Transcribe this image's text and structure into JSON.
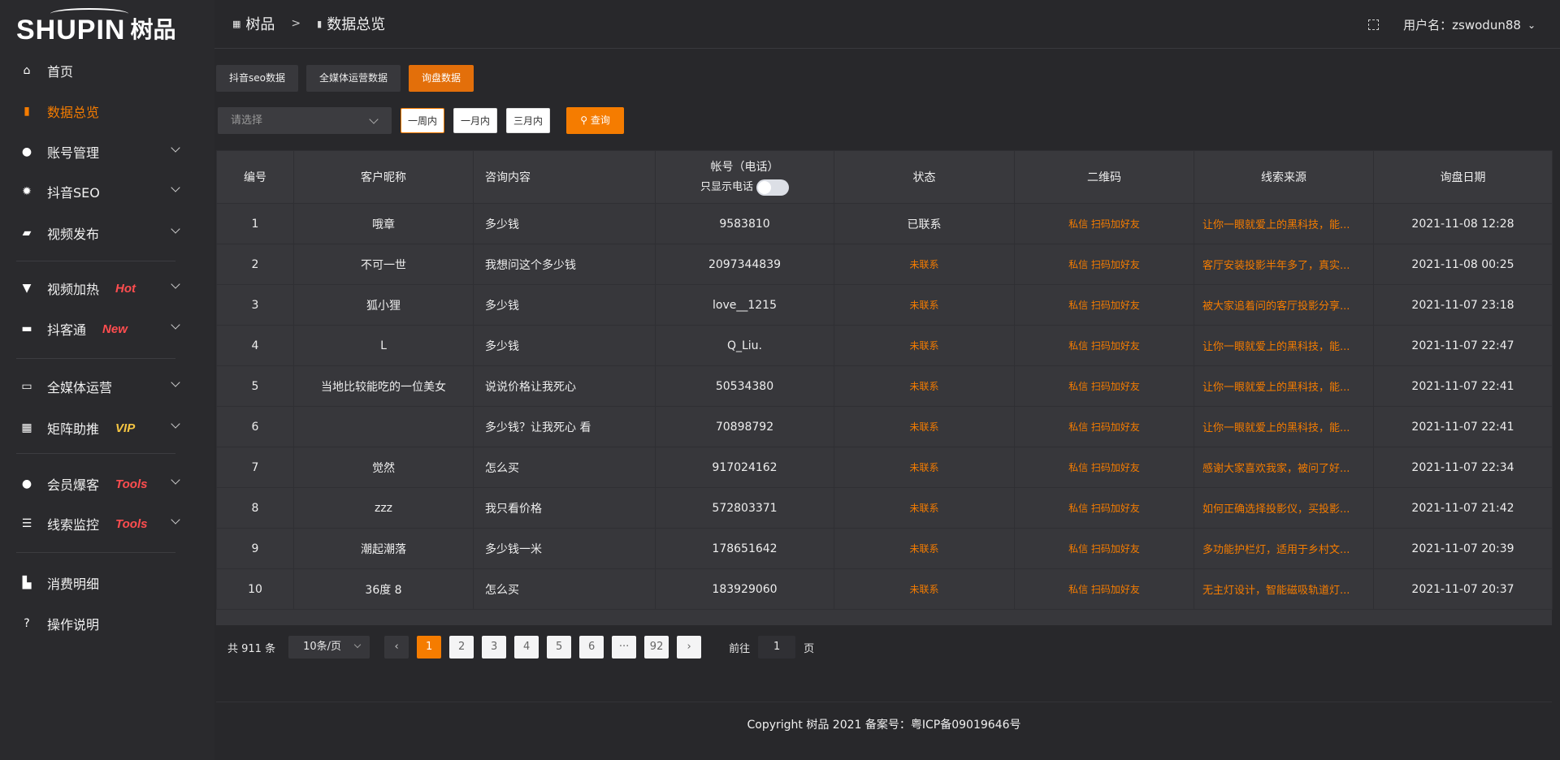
{
  "brand": {
    "logo_en": "SHUPIN",
    "logo_cn": "树品"
  },
  "sidebar": {
    "items": [
      {
        "label": "首页",
        "icon": "home-icon"
      },
      {
        "label": "数据总览",
        "icon": "bar-chart-icon",
        "active": true
      },
      {
        "label": "账号管理",
        "icon": "user-icon",
        "expandable": true
      },
      {
        "label": "抖音SEO",
        "icon": "gear-icon",
        "expandable": true
      },
      {
        "label": "视频发布",
        "icon": "video-icon",
        "expandable": true
      },
      {
        "label": "视频加热",
        "icon": "brush-icon",
        "badge": "Hot",
        "expandable": true
      },
      {
        "label": "抖客通",
        "icon": "chat-icon",
        "badge": "New",
        "expandable": true
      },
      {
        "label": "全媒体运营",
        "icon": "monitor-icon",
        "expandable": true
      },
      {
        "label": "矩阵助推",
        "icon": "grid-icon",
        "badge": "VIP",
        "expandable": true
      },
      {
        "label": "会员爆客",
        "icon": "member-icon",
        "badge": "Tools",
        "expandable": true
      },
      {
        "label": "线索监控",
        "icon": "sliders-icon",
        "badge": "Tools",
        "expandable": true
      },
      {
        "label": "消费明细",
        "icon": "wallet-icon"
      },
      {
        "label": "操作说明",
        "icon": "help-icon"
      }
    ]
  },
  "colors": {
    "accent": "#f57c00",
    "badge_red": "#ff4d4f",
    "badge_vip": "#f5c542"
  },
  "header": {
    "breadcrumb": [
      "树品",
      "数据总览"
    ],
    "breadcrumb_sep": ">",
    "username": "用户名：zswodun88"
  },
  "tabs": [
    {
      "label": "抖音seo数据"
    },
    {
      "label": "全媒体运营数据"
    },
    {
      "label": "询盘数据",
      "active": true
    }
  ],
  "filters": {
    "select_placeholder": "请选择",
    "ranges": [
      "一周内",
      "一月内",
      "三月内"
    ],
    "selected_range": "一周内",
    "query_label": "查询"
  },
  "table": {
    "headers": [
      "编号",
      "客户昵称",
      "咨询内容",
      "帐号（电话）",
      "状态",
      "二维码",
      "线索来源",
      "询盘日期"
    ],
    "phone_toggle_label": "只显示电话",
    "phone_toggle_on": false,
    "qr_text": "私信 扫码加好友",
    "rows": [
      {
        "id": "1",
        "nick": "哦章",
        "content": "多少钱",
        "account": "9583810",
        "status": "已联系",
        "source": "让你一眼就爱上的黑科技，能...",
        "date": "2021-11-08 12:28"
      },
      {
        "id": "2",
        "nick": "不可一世",
        "content": "我想问这个多少钱",
        "account": "2097344839",
        "status": "未联系",
        "source": "客厅安装投影半年多了，真实...",
        "date": "2021-11-08 00:25"
      },
      {
        "id": "3",
        "nick": "狐小狸",
        "content": "多少钱",
        "account": "love__1215",
        "status": "未联系",
        "source": "被大家追着问的客厅投影分享...",
        "date": "2021-11-07 23:18"
      },
      {
        "id": "4",
        "nick": "L",
        "content": "多少钱",
        "account": "Q_Liu.",
        "status": "未联系",
        "source": "让你一眼就爱上的黑科技，能...",
        "date": "2021-11-07 22:47"
      },
      {
        "id": "5",
        "nick": "当地比较能吃的一位美女",
        "content": "说说价格让我死心",
        "account": "50534380",
        "status": "未联系",
        "source": "让你一眼就爱上的黑科技，能...",
        "date": "2021-11-07 22:41"
      },
      {
        "id": "6",
        "nick": "",
        "content": "多少钱？让我死心 看",
        "account": "70898792",
        "status": "未联系",
        "source": "让你一眼就爱上的黑科技，能...",
        "date": "2021-11-07 22:41"
      },
      {
        "id": "7",
        "nick": "觉然",
        "content": "怎么买",
        "account": "917024162",
        "status": "未联系",
        "source": "感谢大家喜欢我家，被问了好...",
        "date": "2021-11-07 22:34"
      },
      {
        "id": "8",
        "nick": "zzz",
        "content": "我只看价格",
        "account": "572803371",
        "status": "未联系",
        "source": "如何正确选择投影仪，买投影...",
        "date": "2021-11-07 21:42"
      },
      {
        "id": "9",
        "nick": "潮起潮落",
        "content": "多少钱一米",
        "account": "178651642",
        "status": "未联系",
        "source": "多功能护栏灯，适用于乡村文...",
        "date": "2021-11-07 20:39"
      },
      {
        "id": "10",
        "nick": "36度 8",
        "content": "怎么买",
        "account": "183929060",
        "status": "未联系",
        "source": "无主灯设计，智能磁吸轨道灯...",
        "date": "2021-11-07 20:37"
      }
    ]
  },
  "pagination": {
    "total": "共 911 条",
    "page_size": "10条/页",
    "pages": [
      "1",
      "2",
      "3",
      "4",
      "5",
      "6",
      "···",
      "92"
    ],
    "current": "1",
    "goto_label": "前往",
    "goto_value": "1",
    "page_unit": "页"
  },
  "footer": {
    "copyright": "Copyright 树品 2021 备案号：粤ICP备09019646号"
  }
}
